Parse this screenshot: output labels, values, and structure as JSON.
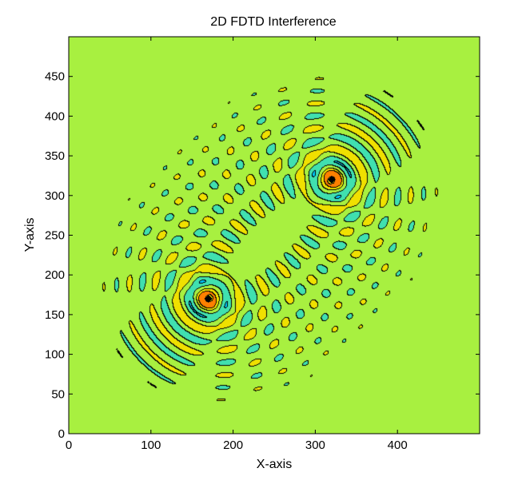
{
  "chart_data": {
    "type": "heatmap",
    "subtype": "filled-contour",
    "title": "2D FDTD Interference",
    "xlabel": "X-axis",
    "ylabel": "Y-axis",
    "xlim": [
      0,
      500
    ],
    "ylim": [
      0,
      500
    ],
    "xticks": [
      0,
      100,
      200,
      300,
      400
    ],
    "yticks": [
      0,
      50,
      100,
      150,
      200,
      250,
      300,
      350,
      400,
      450
    ],
    "grid": false,
    "legend": "none",
    "sources": [
      {
        "x": 170,
        "y": 170
      },
      {
        "x": 320,
        "y": 320
      }
    ],
    "colormap": [
      "#0000b8",
      "#0064ff",
      "#00c8ff",
      "#40e0b0",
      "#a8f040",
      "#f0e000",
      "#ff8000",
      "#e01010",
      "#a00000"
    ],
    "colormap_style": "jet"
  }
}
